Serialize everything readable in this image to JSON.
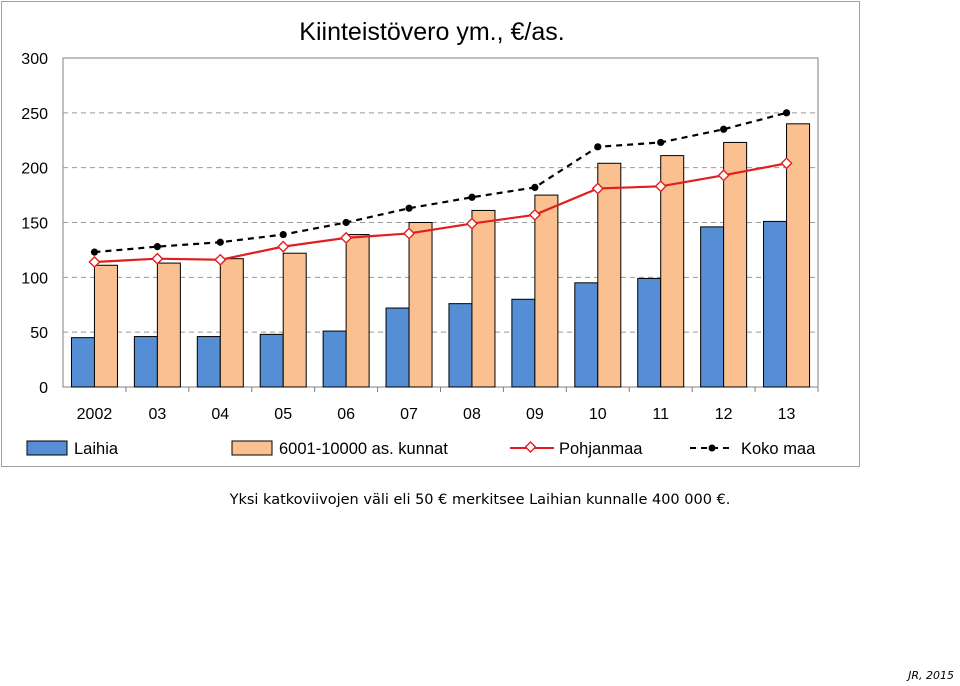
{
  "chart_data": {
    "type": "bar",
    "title": "Kiinteistövero ym., €/as.",
    "categories": [
      "2002",
      "03",
      "04",
      "05",
      "06",
      "07",
      "08",
      "09",
      "10",
      "11",
      "12",
      "13"
    ],
    "ylim": [
      0,
      300
    ],
    "yticks": [
      0,
      50,
      100,
      150,
      200,
      250,
      300
    ],
    "grid": true,
    "legend_position": "bottom",
    "series": [
      {
        "name": "Laihia",
        "type": "bar",
        "color": "#558ed5",
        "values": [
          45,
          46,
          46,
          48,
          51,
          72,
          76,
          80,
          95,
          99,
          146,
          151
        ]
      },
      {
        "name": "6001-10000 as. kunnat",
        "type": "bar",
        "color": "#fac090",
        "values": [
          111,
          113,
          117,
          122,
          139,
          150,
          161,
          175,
          204,
          211,
          223,
          240
        ]
      },
      {
        "name": "Pohjanmaa",
        "type": "line",
        "color": "#e02020",
        "values": [
          114,
          117,
          116,
          128,
          136,
          140,
          149,
          157,
          181,
          183,
          193,
          204
        ]
      },
      {
        "name": "Koko maa",
        "type": "line",
        "color": "#000000",
        "values": [
          123,
          128,
          132,
          139,
          150,
          163,
          173,
          182,
          219,
          223,
          235,
          250
        ]
      }
    ]
  },
  "legend_labels": {
    "laihia": "Laihia",
    "kunnat": "6001-10000 as. kunnat",
    "pohjanmaa": "Pohjanmaa",
    "kokomaa": "Koko maa"
  },
  "footnote": "Yksi katkoviivojen väli eli 50 € merkitsee Laihian kunnalle 400 000 €.",
  "credit": "JR, 2015"
}
